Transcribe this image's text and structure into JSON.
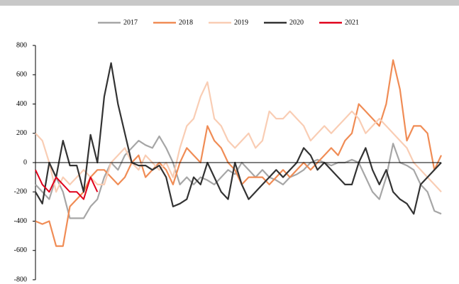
{
  "chart_data": {
    "type": "line",
    "series": [
      {
        "name": "2017",
        "color": "#a6a6a6",
        "values": [
          -150,
          -200,
          -250,
          -100,
          -200,
          -380,
          -380,
          -380,
          -300,
          -250,
          -100,
          0,
          -50,
          50,
          100,
          150,
          120,
          100,
          180,
          100,
          0,
          -150,
          -100,
          -150,
          -100,
          -120,
          -150,
          -100,
          -50,
          -80,
          0,
          -50,
          -100,
          -50,
          -100,
          -120,
          -150,
          -100,
          -80,
          -50,
          0,
          20,
          0,
          -20,
          0,
          0,
          20,
          0,
          -100,
          -200,
          -250,
          -100,
          130,
          0,
          -20,
          -50,
          -150,
          -200,
          -330,
          -350
        ]
      },
      {
        "name": "2018",
        "color": "#f08c55",
        "values": [
          -400,
          -420,
          -400,
          -570,
          -570,
          -300,
          -250,
          -200,
          -100,
          -50,
          -50,
          -100,
          -150,
          -100,
          0,
          50,
          -100,
          -50,
          0,
          -50,
          -150,
          0,
          100,
          50,
          0,
          250,
          150,
          100,
          0,
          -50,
          -150,
          -100,
          -100,
          -100,
          -150,
          -100,
          -50,
          -100,
          -50,
          0,
          -50,
          0,
          50,
          100,
          50,
          150,
          200,
          400,
          350,
          300,
          250,
          400,
          700,
          500,
          150,
          250,
          250,
          200,
          -50,
          50
        ]
      },
      {
        "name": "2019",
        "color": "#f9cdb4",
        "values": [
          200,
          150,
          0,
          -200,
          -100,
          -150,
          -100,
          -50,
          -100,
          -150,
          -150,
          0,
          50,
          100,
          0,
          -50,
          50,
          0,
          -50,
          0,
          -100,
          100,
          250,
          300,
          450,
          550,
          300,
          250,
          150,
          100,
          150,
          200,
          100,
          150,
          350,
          300,
          300,
          350,
          300,
          250,
          150,
          200,
          250,
          200,
          250,
          300,
          350,
          300,
          200,
          250,
          300,
          250,
          200,
          150,
          100,
          0,
          -50,
          -100,
          -150,
          -200
        ]
      },
      {
        "name": "2020",
        "color": "#333333",
        "values": [
          -200,
          -280,
          0,
          -100,
          150,
          -20,
          -20,
          -200,
          190,
          0,
          450,
          680,
          400,
          200,
          0,
          -20,
          -20,
          -50,
          -20,
          -100,
          -300,
          -280,
          -250,
          -100,
          -150,
          0,
          -100,
          -200,
          -250,
          0,
          -150,
          -250,
          -200,
          -150,
          -100,
          -50,
          -100,
          -50,
          0,
          100,
          50,
          -50,
          0,
          -50,
          -100,
          -150,
          -150,
          0,
          100,
          -50,
          -150,
          -50,
          -200,
          -250,
          -280,
          -350,
          -150,
          -100,
          -50,
          0
        ]
      },
      {
        "name": "2021",
        "color": "#e0001b",
        "values": [
          -50,
          -150,
          -200,
          -100,
          -150,
          -200,
          -200,
          -250,
          -100,
          -200,
          null,
          null,
          null,
          null,
          null,
          null,
          null,
          null,
          null,
          null,
          null,
          null,
          null,
          null,
          null,
          null,
          null,
          null,
          null,
          null,
          null,
          null,
          null,
          null,
          null,
          null,
          null,
          null,
          null,
          null,
          null,
          null,
          null,
          null,
          null,
          null,
          null,
          null,
          null,
          null,
          null,
          null,
          null,
          null,
          null,
          null,
          null,
          null,
          null,
          null
        ]
      }
    ],
    "ylim": [
      -800,
      800
    ],
    "yticks": [
      -800,
      -600,
      -400,
      -200,
      0,
      200,
      400,
      600,
      800
    ]
  }
}
